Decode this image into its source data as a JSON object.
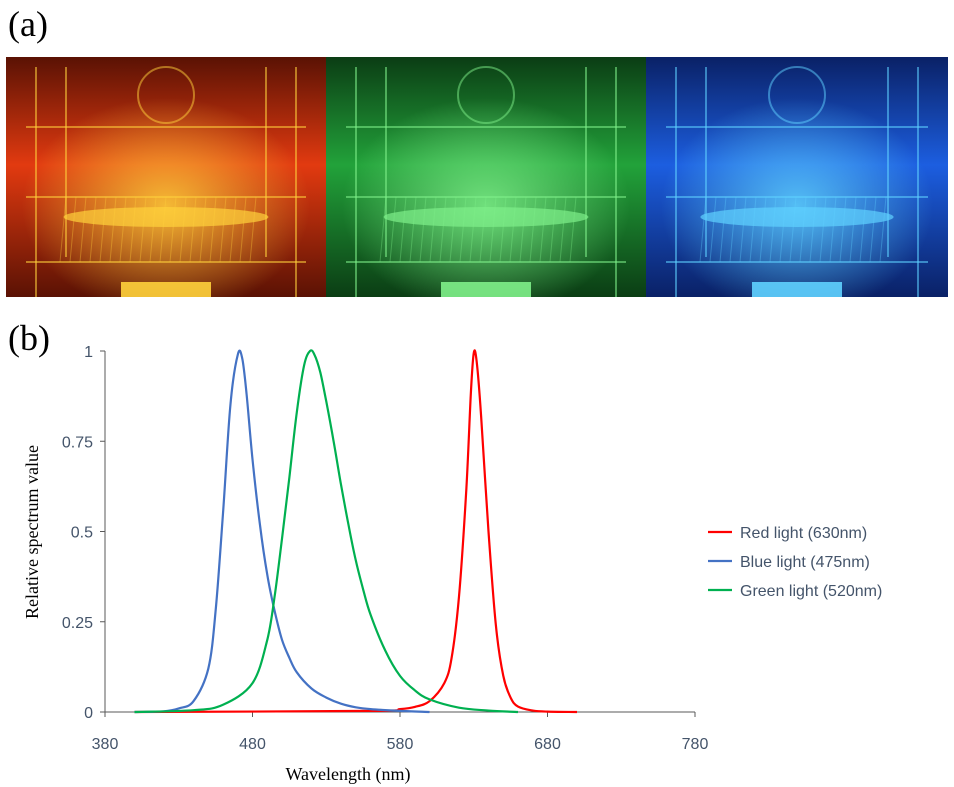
{
  "panels": {
    "a": "(a)",
    "b": "(b)"
  },
  "photos": [
    {
      "name": "red",
      "color": "#e23a10",
      "dark": "#5a1204",
      "light": "#ffd23c"
    },
    {
      "name": "green",
      "color": "#22a23a",
      "dark": "#0b3d14",
      "light": "#7ff08a"
    },
    {
      "name": "blue",
      "color": "#1c5ee0",
      "dark": "#0a2166",
      "light": "#5fd2ff"
    }
  ],
  "chart_data": {
    "type": "line",
    "xlabel": "Wavelength (nm)",
    "ylabel": "Relative spectrum value",
    "xlim": [
      380,
      780
    ],
    "ylim": [
      0,
      1
    ],
    "xticks": [
      380,
      480,
      580,
      680,
      780
    ],
    "yticks": [
      0,
      0.25,
      0.5,
      0.75,
      1
    ],
    "ytick_labels": [
      "0",
      "0.25",
      "0.5",
      "0.75",
      "1"
    ],
    "legend_position": "right",
    "series": [
      {
        "name": "Red light (630nm)",
        "color": "#ff0000",
        "x": [
          400,
          560,
          580,
          590,
          600,
          610,
          615,
          620,
          625,
          628,
          630,
          632,
          635,
          640,
          645,
          650,
          655,
          660,
          670,
          680,
          700
        ],
        "y": [
          0,
          0.003,
          0.008,
          0.014,
          0.03,
          0.08,
          0.15,
          0.32,
          0.62,
          0.88,
          0.995,
          0.97,
          0.82,
          0.5,
          0.24,
          0.1,
          0.04,
          0.015,
          0.004,
          0.001,
          0
        ]
      },
      {
        "name": "Blue light (475nm)",
        "color": "#4472C4",
        "x": [
          400,
          420,
          430,
          440,
          450,
          455,
          460,
          465,
          470,
          473,
          476,
          480,
          485,
          490,
          495,
          500,
          505,
          510,
          520,
          530,
          540,
          550,
          560,
          580,
          600
        ],
        "y": [
          0,
          0.002,
          0.01,
          0.03,
          0.12,
          0.28,
          0.55,
          0.85,
          0.99,
          0.98,
          0.88,
          0.7,
          0.52,
          0.38,
          0.28,
          0.2,
          0.15,
          0.11,
          0.065,
          0.04,
          0.023,
          0.013,
          0.008,
          0.003,
          0
        ]
      },
      {
        "name": "Green light (520nm)",
        "color": "#00B050",
        "x": [
          400,
          440,
          460,
          480,
          490,
          495,
          500,
          505,
          510,
          515,
          519,
          522,
          526,
          530,
          535,
          540,
          545,
          550,
          555,
          560,
          570,
          580,
          590,
          600,
          620,
          640,
          660
        ],
        "y": [
          0,
          0.005,
          0.02,
          0.08,
          0.2,
          0.32,
          0.48,
          0.65,
          0.83,
          0.96,
          1.0,
          0.99,
          0.94,
          0.86,
          0.75,
          0.63,
          0.52,
          0.42,
          0.34,
          0.27,
          0.17,
          0.1,
          0.06,
          0.035,
          0.012,
          0.004,
          0
        ]
      }
    ]
  }
}
